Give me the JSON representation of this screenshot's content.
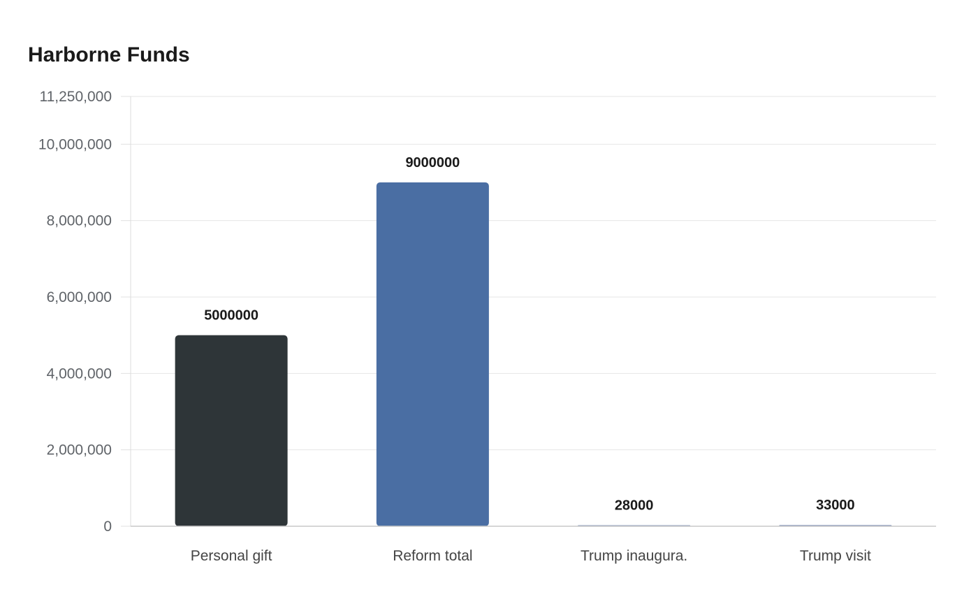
{
  "chart_data": {
    "type": "bar",
    "title": "Harborne Funds",
    "categories": [
      "Personal gift",
      "Reform total",
      "Trump inaugura.",
      "Trump visit"
    ],
    "values": [
      5000000,
      9000000,
      28000,
      33000
    ],
    "value_labels": [
      "5000000",
      "9000000",
      "28000",
      "33000"
    ],
    "colors": [
      "#2e3538",
      "#4a6ea3",
      "#8a9bbd",
      "#8a9bbd"
    ],
    "ylim": [
      0,
      11250000
    ],
    "yticks": [
      0,
      2000000,
      4000000,
      6000000,
      8000000,
      10000000,
      11250000
    ],
    "ytick_labels": [
      "0",
      "2,000,000",
      "4,000,000",
      "6,000,000",
      "8,000,000",
      "10,000,000",
      "11,250,000"
    ],
    "xlabel": "",
    "ylabel": "",
    "grid": true,
    "legend": "none"
  }
}
